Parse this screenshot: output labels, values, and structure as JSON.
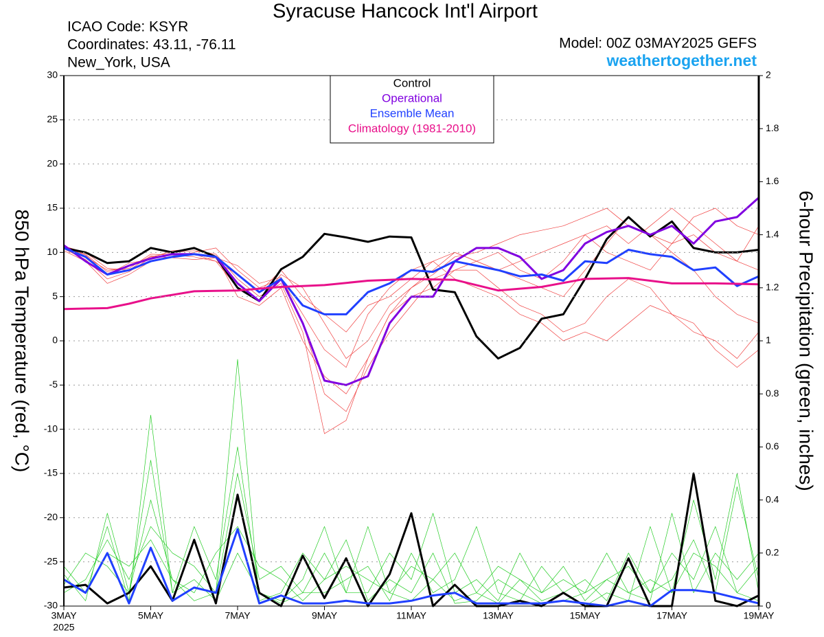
{
  "chart_data": {
    "type": "line",
    "title": "Syracuse Hancock Int'l Airport",
    "info": [
      "ICAO Code: KSYR",
      "Coordinates: 43.11, -76.11",
      "New_York, USA"
    ],
    "model": "Model: 00Z 03MAY2025 GEFS",
    "site": "weathertogether.net",
    "y_label": "850 hPa Temperature (red, °C)",
    "y2_label": "6-hour Precipitation (green, inches)",
    "year_label": "2025",
    "grid": true,
    "legend": "top",
    "xlim": [
      0,
      16
    ],
    "xticks": [
      {
        "value": 0,
        "label": "3MAY"
      },
      {
        "value": 2,
        "label": "5MAY"
      },
      {
        "value": 4,
        "label": "7MAY"
      },
      {
        "value": 6,
        "label": "9MAY"
      },
      {
        "value": 8,
        "label": "11MAY"
      },
      {
        "value": 10,
        "label": "13MAY"
      },
      {
        "value": 12,
        "label": "15MAY"
      },
      {
        "value": 14,
        "label": "17MAY"
      },
      {
        "value": 16,
        "label": "19MAY"
      }
    ],
    "ylim": [
      -30,
      30
    ],
    "yticks": [
      -30,
      -25,
      -20,
      -15,
      -10,
      -5,
      0,
      5,
      10,
      15,
      20,
      25,
      30
    ],
    "y2lim": [
      0,
      2
    ],
    "y2ticks": [
      0,
      0.2,
      0.4,
      0.6,
      0.8,
      1,
      1.2,
      1.4,
      1.6,
      1.8,
      2
    ],
    "x": [
      0,
      0.5,
      1,
      1.5,
      2,
      2.5,
      3,
      3.5,
      4,
      4.5,
      5,
      5.5,
      6,
      6.5,
      7,
      7.5,
      8,
      8.5,
      9,
      9.5,
      10,
      10.5,
      11,
      11.5,
      12,
      12.5,
      13,
      13.5,
      14,
      14.5,
      15,
      15.5,
      16
    ],
    "series": [
      {
        "color": "#f04040",
        "width": 0.7,
        "values": [
          10.5,
          9.8,
          7.8,
          8.5,
          9.5,
          10,
          10.2,
          9.8,
          7,
          5,
          6.5,
          1,
          -10.5,
          -9,
          -2,
          3,
          6,
          8,
          10,
          9,
          8,
          7,
          6,
          5,
          8,
          11,
          14,
          12,
          10,
          8,
          5,
          3,
          2
        ]
      },
      {
        "color": "#f04040",
        "width": 0.7,
        "values": [
          10.8,
          9.5,
          8,
          8.2,
          9.8,
          9.7,
          9.5,
          9,
          6,
          4.5,
          7.5,
          6,
          2,
          -2,
          0,
          4,
          6,
          7.5,
          9.5,
          10,
          11,
          12,
          12.5,
          13,
          14,
          15,
          13,
          12,
          11,
          14,
          15,
          13,
          12
        ]
      },
      {
        "color": "#f04040",
        "width": 0.7,
        "values": [
          10.2,
          9,
          6.5,
          7.5,
          9,
          9.5,
          10,
          10.5,
          8,
          6,
          7,
          3,
          -1,
          -3,
          3,
          6,
          8,
          9,
          7,
          6,
          5,
          3,
          2,
          0,
          1,
          0,
          2,
          4,
          3,
          1,
          0,
          -2,
          1
        ]
      },
      {
        "color": "#f04040",
        "width": 0.7,
        "values": [
          10.6,
          9.7,
          7.5,
          8.8,
          9.2,
          9.8,
          9.8,
          9,
          7.5,
          5.5,
          8,
          5,
          3,
          1,
          4,
          5,
          7,
          9,
          10,
          9,
          8,
          9,
          10,
          11,
          12,
          10,
          9,
          8,
          11,
          12,
          10,
          9,
          13
        ]
      },
      {
        "color": "#f04040",
        "width": 0.7,
        "values": [
          10.4,
          9.2,
          7,
          7.8,
          9.4,
          10.2,
          10.4,
          9.6,
          5,
          4,
          6,
          0,
          -4,
          -6,
          -2,
          3,
          5,
          6,
          8,
          8,
          6,
          4,
          3,
          1,
          2,
          5,
          7,
          6,
          3,
          2,
          -1,
          -3,
          -1
        ]
      },
      {
        "color": "#f04040",
        "width": 0.7,
        "values": [
          10.7,
          10,
          8.2,
          8,
          9.6,
          9.4,
          9.2,
          9.4,
          8.5,
          6.5,
          7.2,
          2,
          -6,
          -8,
          -3,
          1,
          4,
          7,
          8,
          9,
          10,
          8,
          7,
          9,
          12,
          13,
          11,
          13,
          15,
          13,
          11,
          9,
          8
        ]
      },
      {
        "color": "#22cc22",
        "width": 0.7,
        "axis": "y2",
        "values": [
          0.15,
          0.05,
          0.3,
          0.02,
          0.72,
          0.05,
          0.1,
          0.02,
          0.2,
          0.05,
          0.01,
          0.05,
          0.2,
          0.05,
          0.3,
          0.05,
          0.02,
          0.1,
          0.02,
          0.05,
          0.01,
          0.1,
          0.02,
          0.05,
          0,
          0.05,
          0.02,
          0.3,
          0.05,
          0.4,
          0.1,
          0.5,
          0.05
        ]
      },
      {
        "color": "#22cc22",
        "width": 0.7,
        "axis": "y2",
        "values": [
          0.08,
          0.2,
          0.15,
          0.05,
          0.4,
          0.1,
          0.02,
          0.05,
          0.93,
          0.02,
          0.05,
          0.2,
          0.1,
          0.25,
          0.02,
          0.1,
          0.05,
          0.2,
          0.01,
          0.02,
          0.1,
          0.05,
          0.01,
          0.02,
          0.05,
          0.1,
          0.05,
          0.02,
          0.35,
          0.05,
          0.2,
          0.1,
          0.2
        ]
      },
      {
        "color": "#22cc22",
        "width": 0.7,
        "axis": "y2",
        "values": [
          0.05,
          0.1,
          0.25,
          0.1,
          0.3,
          0.2,
          0.15,
          0.05,
          0.5,
          0.1,
          0.15,
          0.05,
          0.05,
          0.1,
          0.15,
          0.02,
          0.2,
          0.05,
          0.1,
          0.3,
          0.05,
          0.02,
          0.15,
          0.05,
          0.1,
          0.02,
          0.2,
          0.05,
          0.1,
          0.25,
          0.05,
          0.45,
          0.1
        ]
      },
      {
        "color": "#22cc22",
        "width": 0.7,
        "axis": "y2",
        "values": [
          0.12,
          0.02,
          0.35,
          0.05,
          0.55,
          0.05,
          0.3,
          0.1,
          0.6,
          0.05,
          0.02,
          0.1,
          0.3,
          0.05,
          0.05,
          0.2,
          0.1,
          0.35,
          0.05,
          0.1,
          0.02,
          0.2,
          0.05,
          0.15,
          0.02,
          0.1,
          0.15,
          0.05,
          0.2,
          0.1,
          0.3,
          0.05,
          0.02
        ]
      },
      {
        "color": "#22cc22",
        "width": 0.7,
        "axis": "y2",
        "values": [
          0.1,
          0.05,
          0.2,
          0.15,
          0.25,
          0.1,
          0.05,
          0.2,
          0.3,
          0.15,
          0.1,
          0.02,
          0.1,
          0.15,
          0.1,
          0.05,
          0.15,
          0.1,
          0.2,
          0.05,
          0.15,
          0.1,
          0.05,
          0.1,
          0.05,
          0.2,
          0.05,
          0.1,
          0.05,
          0.2,
          0.15,
          0.05,
          0.15
        ]
      },
      {
        "color": "#000000",
        "width": 3,
        "axis": "y2",
        "values": [
          0.07,
          0.08,
          0.01,
          0.05,
          0.15,
          0.02,
          0.25,
          0.01,
          0.42,
          0.05,
          0,
          0.19,
          0.03,
          0.18,
          0,
          0.12,
          0.35,
          0,
          0.08,
          0,
          0,
          0.02,
          0,
          0.05,
          0,
          0,
          0.18,
          0,
          0,
          0.5,
          0.02,
          0,
          0.04
        ]
      },
      {
        "color": "#2040ff",
        "width": 3,
        "axis": "y2",
        "values": [
          0.1,
          0.05,
          0.2,
          0.01,
          0.22,
          0.02,
          0.07,
          0.05,
          0.29,
          0.01,
          0.04,
          0.01,
          0.01,
          0.02,
          0.01,
          0.01,
          0.02,
          0.04,
          0.05,
          0.01,
          0.01,
          0.01,
          0.01,
          0.02,
          0.01,
          0,
          0.02,
          0,
          0.06,
          0.06,
          0.05,
          0.03,
          0.01
        ]
      },
      {
        "name": "Control",
        "color": "#000000",
        "width": 3,
        "values": [
          10.5,
          10,
          8.8,
          9,
          10.5,
          10,
          10.5,
          9.5,
          6,
          4.5,
          8.1,
          9.5,
          12.1,
          11.7,
          11.2,
          11.8,
          11.7,
          5.8,
          5.5,
          0.5,
          -2,
          -0.8,
          2.5,
          3,
          7,
          11.5,
          14,
          11.8,
          13.5,
          10.5,
          10,
          10,
          10.3
        ]
      },
      {
        "name": "Operational",
        "color": "#8000e0",
        "width": 3,
        "values": [
          10.8,
          9,
          7.5,
          8.5,
          9.3,
          9.8,
          9.8,
          9.5,
          6.5,
          4.5,
          7,
          2,
          -4.5,
          -5,
          -4,
          2,
          5,
          5,
          9,
          10.5,
          10.5,
          9.5,
          7,
          8,
          11,
          12.3,
          13,
          12,
          13,
          11,
          13.5,
          14,
          16.2
        ]
      },
      {
        "name": "Ensemble Mean",
        "color": "#2040ff",
        "width": 3,
        "values": [
          10.5,
          9.5,
          7.5,
          8,
          9,
          9.5,
          9.8,
          9.5,
          7.5,
          5.5,
          7,
          4,
          3,
          3,
          5.5,
          6.5,
          8,
          7.8,
          9,
          8.5,
          8,
          7.3,
          7.5,
          6.8,
          9,
          8.8,
          10.3,
          9.8,
          9.5,
          8,
          8.3,
          6.2,
          7.3
        ]
      },
      {
        "name": "Climatology (1981-2010)",
        "color": "#e8108a",
        "width": 3,
        "values": [
          3.6,
          3.65,
          3.7,
          4.2,
          4.8,
          5.2,
          5.6,
          5.65,
          5.7,
          5.9,
          6.1,
          6.2,
          6.3,
          6.55,
          6.8,
          6.9,
          7,
          6.95,
          6.9,
          6.3,
          5.7,
          5.9,
          6.1,
          6.55,
          7,
          7.05,
          7.1,
          6.8,
          6.5,
          6.5,
          6.5,
          6.45,
          6.4
        ]
      }
    ]
  }
}
